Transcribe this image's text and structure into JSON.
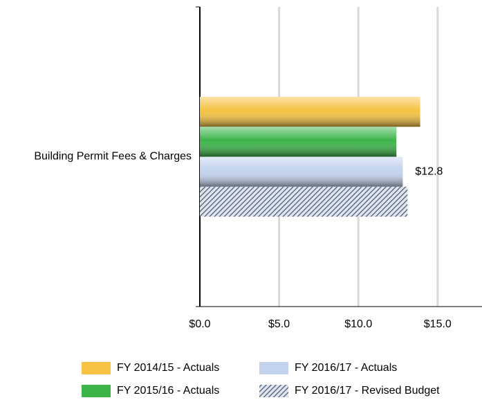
{
  "chart_data": {
    "type": "bar",
    "orientation": "horizontal",
    "categories": [
      "Building Permit Fees & Charges"
    ],
    "series": [
      {
        "name": "FY 2014/15 - Actuals",
        "color": "#f5c242",
        "values": [
          13.9
        ]
      },
      {
        "name": "FY 2015/16 - Actuals",
        "color": "#3cb44a",
        "values": [
          12.4
        ]
      },
      {
        "name": "FY 2016/17 - Actuals",
        "color": "#c3d3ee",
        "values": [
          12.8
        ],
        "value_labels": [
          "$12.8"
        ]
      },
      {
        "name": "FY 2016/17 - Revised Budget",
        "color": "#44546a",
        "pattern": "diagonal-hatch",
        "values": [
          13.1
        ]
      }
    ],
    "xlim": [
      0,
      17.8
    ],
    "xticks": [
      {
        "value": 0,
        "label": "$0.0"
      },
      {
        "value": 5,
        "label": "$5.0"
      },
      {
        "value": 10,
        "label": "$10.0"
      },
      {
        "value": 15,
        "label": "$15.0"
      }
    ],
    "grid": true,
    "legend": "bottom"
  }
}
